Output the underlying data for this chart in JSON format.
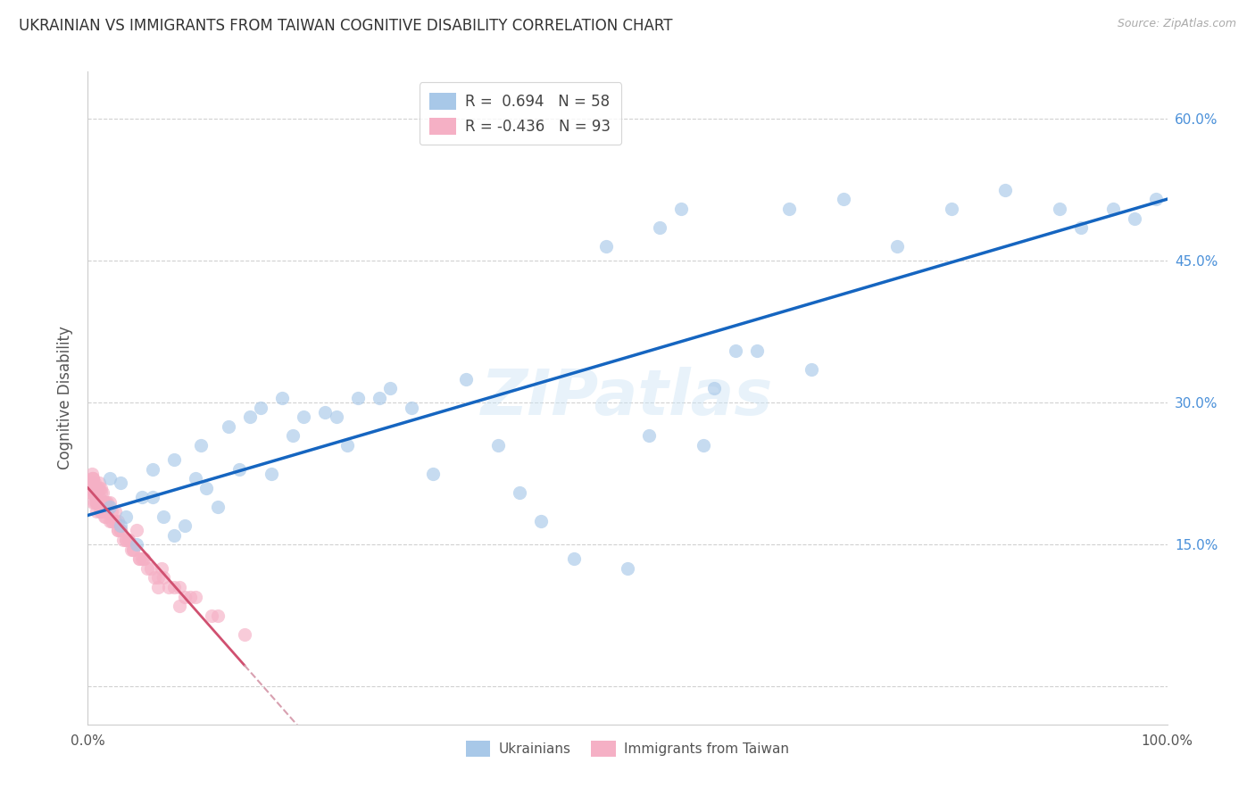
{
  "title": "UKRAINIAN VS IMMIGRANTS FROM TAIWAN COGNITIVE DISABILITY CORRELATION CHART",
  "source": "Source: ZipAtlas.com",
  "ylabel": "Cognitive Disability",
  "watermark": "ZIPatlas",
  "xlim": [
    0.0,
    1.0
  ],
  "ylim": [
    -0.04,
    0.65
  ],
  "xtick_positions": [
    0.0,
    0.2,
    0.4,
    0.6,
    0.8,
    1.0
  ],
  "xticklabels": [
    "0.0%",
    "",
    "",
    "",
    "",
    "100.0%"
  ],
  "ytick_positions": [
    0.0,
    0.15,
    0.3,
    0.45,
    0.6
  ],
  "yticklabels_right": [
    "",
    "15.0%",
    "30.0%",
    "45.0%",
    "60.0%"
  ],
  "r_ukrainian": 0.694,
  "n_ukrainian": 58,
  "r_taiwan": -0.436,
  "n_taiwan": 93,
  "color_ukrainian_fill": "#a8c8e8",
  "color_taiwan_fill": "#f5b0c5",
  "color_line_ukrainian": "#1565c0",
  "color_line_taiwan_solid": "#d05070",
  "color_line_taiwan_dashed": "#d8a0b0",
  "legend_labels": [
    "Ukrainians",
    "Immigrants from Taiwan"
  ],
  "figsize": [
    14.06,
    8.92
  ],
  "dpi": 100,
  "background_color": "#ffffff",
  "grid_color": "#cccccc",
  "title_fontsize": 12,
  "right_tick_color": "#4a90d9",
  "scatter_size": 120,
  "scatter_alpha": 0.65,
  "ukrainian_x": [
    0.02,
    0.03,
    0.035,
    0.02,
    0.05,
    0.06,
    0.03,
    0.045,
    0.07,
    0.08,
    0.1,
    0.06,
    0.09,
    0.12,
    0.08,
    0.11,
    0.15,
    0.13,
    0.105,
    0.18,
    0.16,
    0.2,
    0.14,
    0.22,
    0.25,
    0.19,
    0.17,
    0.23,
    0.27,
    0.3,
    0.24,
    0.28,
    0.35,
    0.32,
    0.4,
    0.38,
    0.45,
    0.42,
    0.5,
    0.55,
    0.48,
    0.53,
    0.6,
    0.58,
    0.65,
    0.7,
    0.75,
    0.8,
    0.85,
    0.9,
    0.92,
    0.95,
    0.97,
    0.99,
    0.52,
    0.57,
    0.62,
    0.67
  ],
  "ukrainian_y": [
    0.19,
    0.215,
    0.18,
    0.22,
    0.2,
    0.23,
    0.17,
    0.15,
    0.18,
    0.24,
    0.22,
    0.2,
    0.17,
    0.19,
    0.16,
    0.21,
    0.285,
    0.275,
    0.255,
    0.305,
    0.295,
    0.285,
    0.23,
    0.29,
    0.305,
    0.265,
    0.225,
    0.285,
    0.305,
    0.295,
    0.255,
    0.315,
    0.325,
    0.225,
    0.205,
    0.255,
    0.135,
    0.175,
    0.125,
    0.505,
    0.465,
    0.485,
    0.355,
    0.315,
    0.505,
    0.515,
    0.465,
    0.505,
    0.525,
    0.505,
    0.485,
    0.505,
    0.495,
    0.515,
    0.265,
    0.255,
    0.355,
    0.335
  ],
  "taiwan_x": [
    0.003,
    0.004,
    0.005,
    0.003,
    0.006,
    0.004,
    0.005,
    0.007,
    0.006,
    0.008,
    0.003,
    0.005,
    0.004,
    0.007,
    0.009,
    0.004,
    0.006,
    0.008,
    0.01,
    0.007,
    0.005,
    0.008,
    0.006,
    0.009,
    0.011,
    0.004,
    0.007,
    0.005,
    0.01,
    0.012,
    0.006,
    0.009,
    0.008,
    0.011,
    0.014,
    0.007,
    0.01,
    0.013,
    0.016,
    0.018,
    0.008,
    0.012,
    0.015,
    0.02,
    0.025,
    0.01,
    0.014,
    0.018,
    0.023,
    0.03,
    0.012,
    0.016,
    0.022,
    0.028,
    0.035,
    0.045,
    0.015,
    0.02,
    0.028,
    0.038,
    0.048,
    0.018,
    0.025,
    0.033,
    0.042,
    0.055,
    0.022,
    0.03,
    0.04,
    0.052,
    0.065,
    0.028,
    0.038,
    0.05,
    0.068,
    0.085,
    0.035,
    0.048,
    0.062,
    0.08,
    0.1,
    0.042,
    0.058,
    0.075,
    0.095,
    0.12,
    0.052,
    0.07,
    0.09,
    0.115,
    0.145,
    0.065,
    0.085
  ],
  "taiwan_y": [
    0.215,
    0.205,
    0.22,
    0.21,
    0.195,
    0.225,
    0.21,
    0.2,
    0.215,
    0.195,
    0.205,
    0.215,
    0.22,
    0.2,
    0.195,
    0.21,
    0.205,
    0.195,
    0.215,
    0.2,
    0.22,
    0.195,
    0.205,
    0.21,
    0.185,
    0.215,
    0.205,
    0.195,
    0.2,
    0.21,
    0.205,
    0.195,
    0.185,
    0.195,
    0.205,
    0.21,
    0.195,
    0.185,
    0.18,
    0.195,
    0.205,
    0.185,
    0.18,
    0.195,
    0.185,
    0.21,
    0.195,
    0.185,
    0.175,
    0.165,
    0.205,
    0.195,
    0.185,
    0.175,
    0.155,
    0.165,
    0.195,
    0.175,
    0.165,
    0.155,
    0.135,
    0.185,
    0.175,
    0.155,
    0.145,
    0.125,
    0.175,
    0.165,
    0.145,
    0.135,
    0.115,
    0.165,
    0.155,
    0.135,
    0.125,
    0.105,
    0.155,
    0.135,
    0.115,
    0.105,
    0.095,
    0.145,
    0.125,
    0.105,
    0.095,
    0.075,
    0.135,
    0.115,
    0.095,
    0.075,
    0.055,
    0.105,
    0.085
  ]
}
